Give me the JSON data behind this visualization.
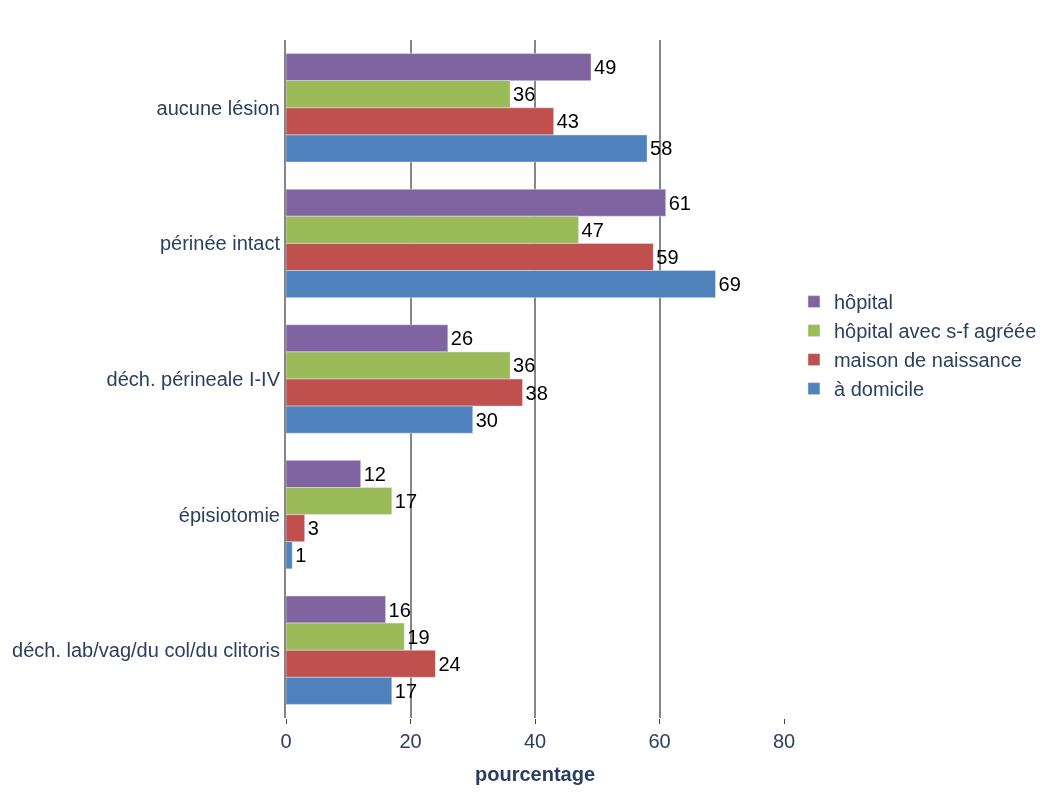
{
  "chart_data": {
    "type": "bar",
    "orientation": "horizontal",
    "xlabel": "pourcentage",
    "categories": [
      "aucune lésion",
      "périnée intact",
      "déch. périneale I-IV",
      "épisiotomie",
      "déch. lab/vag/du col/du clitoris"
    ],
    "series": [
      {
        "name": "hôpital",
        "color": "#8064a2",
        "values": [
          49,
          61,
          26,
          12,
          16
        ]
      },
      {
        "name": "hôpital avec s-f agréée",
        "color": "#9bbb59",
        "values": [
          36,
          47,
          36,
          17,
          19
        ]
      },
      {
        "name": "maison de naissance",
        "color": "#c0504d",
        "values": [
          43,
          59,
          38,
          3,
          24
        ]
      },
      {
        "name": "à domicile",
        "color": "#4f81bd",
        "values": [
          58,
          69,
          30,
          1,
          17
        ]
      }
    ],
    "xlim": [
      0,
      80
    ],
    "xticks": [
      0,
      20,
      40,
      60,
      80
    ],
    "grid": "x",
    "legend": "right",
    "data_labels": true
  }
}
